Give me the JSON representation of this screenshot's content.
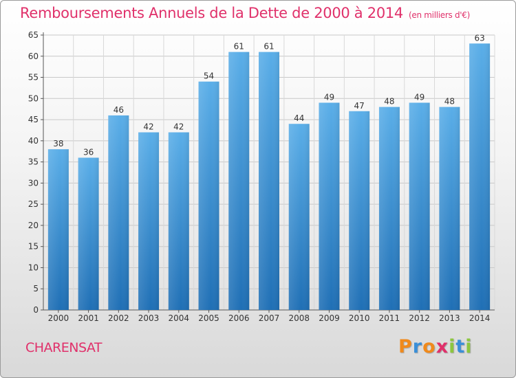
{
  "chart_data": {
    "type": "bar",
    "title": "Remboursements Annuels de la Dette de 2000 à 2014",
    "unit_label": "(en milliers d'€)",
    "categories": [
      "2000",
      "2001",
      "2002",
      "2003",
      "2004",
      "2005",
      "2006",
      "2007",
      "2008",
      "2009",
      "2010",
      "2011",
      "2012",
      "2013",
      "2014"
    ],
    "values": [
      38,
      36,
      46,
      42,
      42,
      54,
      61,
      61,
      44,
      49,
      47,
      48,
      49,
      48,
      63
    ],
    "ylim": [
      0,
      65
    ],
    "yticks": [
      0,
      5,
      10,
      15,
      20,
      25,
      30,
      35,
      40,
      45,
      50,
      55,
      60,
      65
    ],
    "xlabel": "",
    "ylabel": "",
    "grid": true,
    "bar_color": "#4a9fe0"
  },
  "footer": {
    "commune": "CHARENSAT",
    "logo_letters": [
      "P",
      "r",
      "o",
      "x",
      "i",
      "t",
      "i"
    ]
  },
  "colors": {
    "title": "#e0306a",
    "bar_top": "#5aaee8",
    "bar_bottom": "#1f6fb5"
  }
}
